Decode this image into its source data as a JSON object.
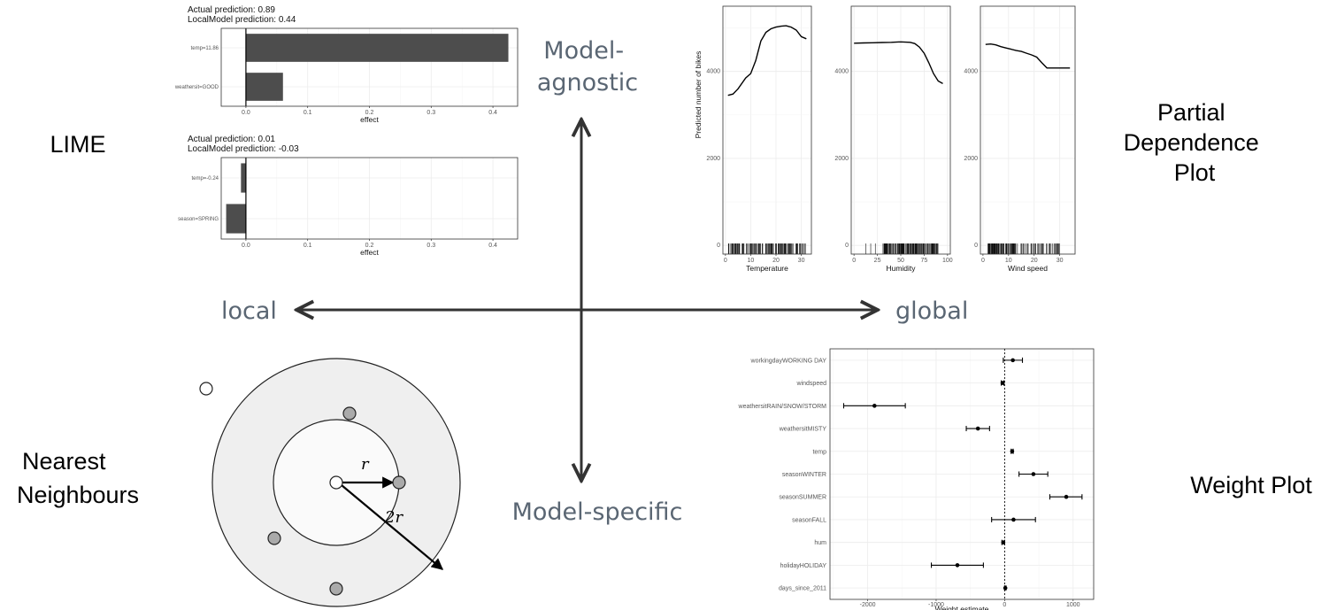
{
  "axes": {
    "top": "Model-\nagnostic",
    "bottom": "Model-specific",
    "left": "local",
    "right": "global"
  },
  "methods": {
    "lime": "LIME",
    "pdp": "Partial\nDependence\nPlot",
    "nn": "Nearest\nNeighbours",
    "weight": "Weight Plot"
  },
  "nn_diagram": {
    "r_label": "r",
    "two_r_label": "2r"
  },
  "chart_data": [
    {
      "id": "lime-1",
      "type": "bar",
      "orientation": "horizontal",
      "title": "Actual prediction: 0.89\nLocalModel prediction: 0.44",
      "categories": [
        "temp=11.86",
        "weathersit=GOOD"
      ],
      "values": [
        0.425,
        0.06
      ],
      "xlabel": "effect",
      "xlim": [
        -0.04,
        0.44
      ],
      "xticks": [
        0.0,
        0.1,
        0.2,
        0.3,
        0.4
      ],
      "xtick_labels": [
        "0.0",
        "0.1",
        "0.2",
        "0.3",
        "0.4"
      ],
      "bar_color": "#4d4d4d"
    },
    {
      "id": "lime-2",
      "type": "bar",
      "orientation": "horizontal",
      "title": "Actual prediction: 0.01\nLocalModel prediction: -0.03",
      "categories": [
        "temp=-0.24",
        "season=SPRING"
      ],
      "values": [
        -0.008,
        -0.032
      ],
      "xlabel": "effect",
      "xlim": [
        -0.04,
        0.44
      ],
      "xticks": [
        0.0,
        0.1,
        0.2,
        0.3,
        0.4
      ],
      "xtick_labels": [
        "0.0",
        "0.1",
        "0.2",
        "0.3",
        "0.4"
      ],
      "bar_color": "#4d4d4d"
    },
    {
      "id": "pdp-temperature",
      "type": "line",
      "xlabel": "Temperature",
      "ylabel": "Predicted number of bikes",
      "xlim": [
        -1,
        34
      ],
      "ylim": [
        -200,
        5500
      ],
      "xticks": [
        0,
        10,
        20,
        30
      ],
      "yticks": [
        0,
        2000,
        4000
      ],
      "x": [
        1,
        3,
        5,
        8,
        10,
        12,
        14,
        16,
        18,
        20,
        22,
        24,
        26,
        28,
        30,
        32
      ],
      "y": [
        3450,
        3480,
        3600,
        3850,
        3950,
        4250,
        4700,
        4900,
        4980,
        5020,
        5040,
        5050,
        5020,
        4950,
        4800,
        4750
      ]
    },
    {
      "id": "pdp-humidity",
      "type": "line",
      "xlabel": "Humidity",
      "xlim": [
        -3,
        103
      ],
      "ylim": [
        -200,
        5500
      ],
      "xticks": [
        0,
        25,
        50,
        75,
        100
      ],
      "yticks": [
        0,
        2000,
        4000
      ],
      "x": [
        0,
        10,
        20,
        30,
        40,
        50,
        60,
        65,
        70,
        75,
        80,
        85,
        90,
        95
      ],
      "y": [
        4650,
        4655,
        4660,
        4665,
        4670,
        4680,
        4670,
        4640,
        4560,
        4420,
        4200,
        3950,
        3780,
        3720
      ]
    },
    {
      "id": "pdp-windspeed",
      "type": "line",
      "xlabel": "Wind speed",
      "xlim": [
        -1,
        36
      ],
      "ylim": [
        -200,
        5500
      ],
      "xticks": [
        0,
        10,
        20,
        30
      ],
      "yticks": [
        0,
        2000,
        4000
      ],
      "x": [
        1,
        3,
        5,
        7,
        9,
        11,
        13,
        15,
        17,
        19,
        21,
        23,
        25,
        27,
        29,
        31,
        34
      ],
      "y": [
        4620,
        4630,
        4610,
        4570,
        4540,
        4510,
        4480,
        4460,
        4420,
        4380,
        4330,
        4200,
        4080,
        4080,
        4080,
        4080,
        4080
      ]
    },
    {
      "id": "weight-plot",
      "type": "scatter",
      "xlabel": "Weight estimate",
      "xlim": [
        -2550,
        1300
      ],
      "xticks": [
        -2000,
        -1000,
        0,
        1000
      ],
      "xtick_labels": [
        "-2000",
        "-1000",
        "0",
        "1000"
      ],
      "reference_line": 0,
      "categories": [
        "workingdayWORKING DAY",
        "windspeed",
        "weathersitRAIN/SNOW/STORM",
        "weathersitMISTY",
        "temp",
        "seasonWINTER",
        "seasonSUMMER",
        "seasonFALL",
        "hum",
        "holidayHOLIDAY",
        "days_since_2011"
      ],
      "estimate": [
        120,
        -30,
        -1900,
        -390,
        110,
        420,
        900,
        130,
        -20,
        -690,
        10
      ],
      "ci_low": [
        -20,
        -50,
        -2350,
        -560,
        95,
        210,
        660,
        -190,
        -40,
        -1070,
        0
      ],
      "ci_high": [
        260,
        -10,
        -1450,
        -220,
        125,
        630,
        1130,
        450,
        0,
        -310,
        20
      ]
    }
  ]
}
